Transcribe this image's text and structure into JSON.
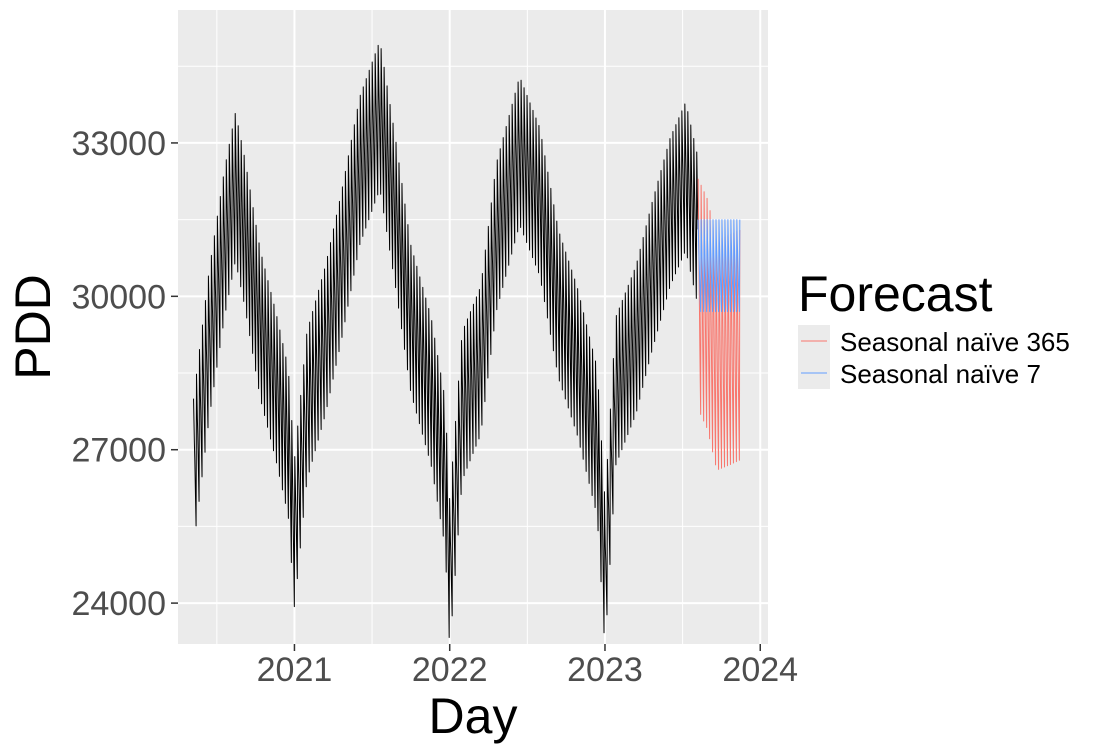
{
  "chart_data": {
    "type": "line",
    "xlabel": "Day",
    "ylabel": "PDD",
    "xlim": [
      2020.25,
      2024.05
    ],
    "ylim": [
      23200,
      35600
    ],
    "x_ticks": [
      2021,
      2022,
      2023,
      2024
    ],
    "x_tick_labels": [
      "2021",
      "2022",
      "2023",
      "2024"
    ],
    "y_ticks": [
      24000,
      27000,
      30000,
      33000
    ],
    "y_tick_labels": [
      "24000",
      "27000",
      "30000",
      "33000"
    ],
    "grid": true,
    "legend": {
      "title": "Forecast",
      "position": "right",
      "entries": [
        {
          "label": "Seasonal naïve 365",
          "color": "#f8766d"
        },
        {
          "label": "Seasonal naïve 7",
          "color": "#619cff"
        }
      ]
    },
    "series": [
      {
        "name": "",
        "color": "#000000",
        "weekday_profile": [
          0,
          -500,
          -1000,
          -1400,
          -1900,
          -2400,
          -2900
        ],
        "envelope": [
          {
            "x": 2020.35,
            "y": 28000
          },
          {
            "x": 2020.45,
            "y": 30500
          },
          {
            "x": 2020.55,
            "y": 32500
          },
          {
            "x": 2020.62,
            "y": 33600
          },
          {
            "x": 2020.68,
            "y": 32700
          },
          {
            "x": 2020.78,
            "y": 30900
          },
          {
            "x": 2020.88,
            "y": 29700
          },
          {
            "x": 2020.96,
            "y": 28600
          },
          {
            "x": 2021.0,
            "y": 26800
          },
          {
            "x": 2021.08,
            "y": 29300
          },
          {
            "x": 2021.2,
            "y": 30600
          },
          {
            "x": 2021.3,
            "y": 32000
          },
          {
            "x": 2021.42,
            "y": 33900
          },
          {
            "x": 2021.55,
            "y": 35000
          },
          {
            "x": 2021.65,
            "y": 33100
          },
          {
            "x": 2021.75,
            "y": 31000
          },
          {
            "x": 2021.88,
            "y": 29600
          },
          {
            "x": 2021.97,
            "y": 28000
          },
          {
            "x": 2022.0,
            "y": 26000
          },
          {
            "x": 2022.08,
            "y": 29300
          },
          {
            "x": 2022.2,
            "y": 30200
          },
          {
            "x": 2022.3,
            "y": 32600
          },
          {
            "x": 2022.45,
            "y": 34300
          },
          {
            "x": 2022.58,
            "y": 33300
          },
          {
            "x": 2022.7,
            "y": 31300
          },
          {
            "x": 2022.82,
            "y": 30200
          },
          {
            "x": 2022.95,
            "y": 28600
          },
          {
            "x": 2023.0,
            "y": 26000
          },
          {
            "x": 2023.07,
            "y": 29600
          },
          {
            "x": 2023.2,
            "y": 30600
          },
          {
            "x": 2023.3,
            "y": 31800
          },
          {
            "x": 2023.42,
            "y": 33100
          },
          {
            "x": 2023.52,
            "y": 33800
          },
          {
            "x": 2023.6,
            "y": 32700
          }
        ]
      },
      {
        "name": "Seasonal naïve 365",
        "color": "#f8766d",
        "x_start": 2023.6,
        "x_end": 2023.87,
        "weekday_profile": [
          0,
          -800,
          -1600,
          -2400,
          -3200,
          -3900,
          -4500
        ],
        "envelope": [
          {
            "x": 2023.6,
            "y": 32300
          },
          {
            "x": 2023.66,
            "y": 31900
          },
          {
            "x": 2023.72,
            "y": 31100
          },
          {
            "x": 2023.8,
            "y": 31200
          },
          {
            "x": 2023.87,
            "y": 31300
          }
        ]
      },
      {
        "name": "Seasonal naïve 7",
        "color": "#619cff",
        "x_start": 2023.6,
        "x_end": 2023.87,
        "weekly_pattern": [
          31500,
          31100,
          30800,
          30500,
          30200,
          29900,
          29700
        ]
      }
    ]
  }
}
